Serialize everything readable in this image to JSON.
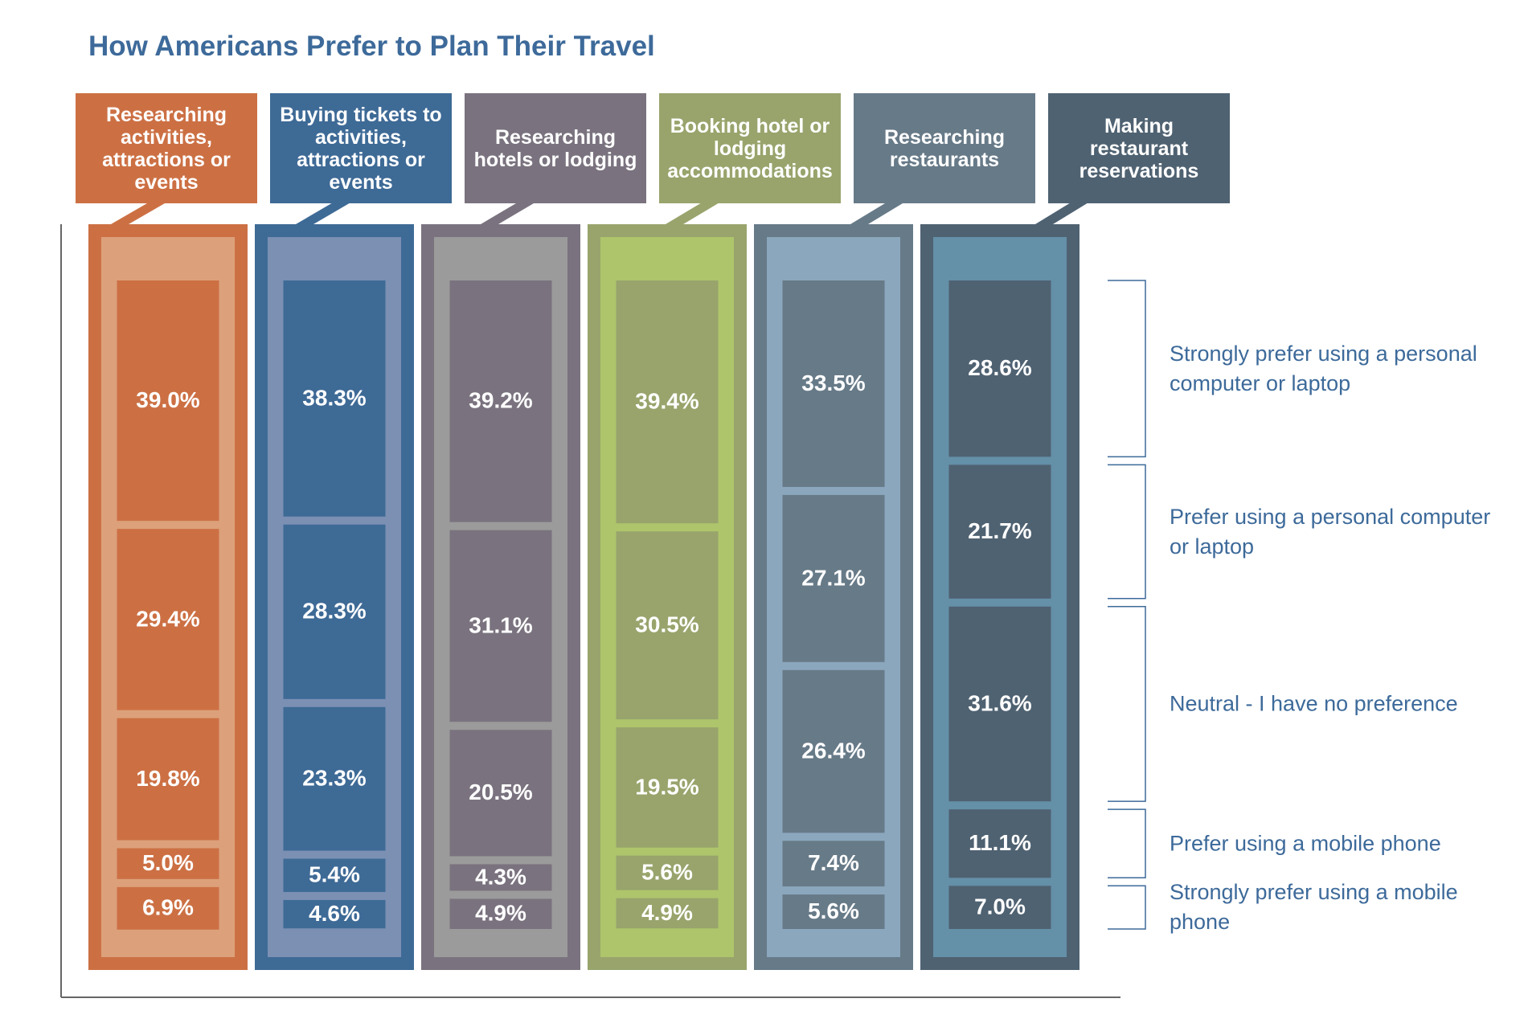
{
  "chart_data": {
    "type": "bar",
    "stacked": true,
    "title": "How Americans Prefer to Plan Their Travel",
    "categories": [
      "Researching activities, attractions or events",
      "Buying tickets to activities, attractions or events",
      "Researching hotels or lodging",
      "Booking hotel or lodging accommodations",
      "Researching restaurants",
      "Making restaurant reservations"
    ],
    "category_colors": [
      {
        "header": "#cc7044",
        "frame": "#cc7044",
        "inner": "#dca17b",
        "segment": "#cc7044"
      },
      {
        "header": "#3e6a96",
        "frame": "#3e6a96",
        "inner": "#7b90b3",
        "segment": "#3e6a96"
      },
      {
        "header": "#7a737f",
        "frame": "#7a737f",
        "inner": "#9b9b9b",
        "segment": "#7a737f"
      },
      {
        "header": "#98a46c",
        "frame": "#98a46c",
        "inner": "#aec56b",
        "segment": "#98a46c"
      },
      {
        "header": "#677a88",
        "frame": "#677a88",
        "inner": "#8ba7bd",
        "segment": "#677a88"
      },
      {
        "header": "#4f6272",
        "frame": "#4f6272",
        "inner": "#6490a8",
        "segment": "#4f6272"
      }
    ],
    "series": [
      {
        "name": "Strongly prefer using a personal computer or laptop",
        "values": [
          39.0,
          38.3,
          39.2,
          39.4,
          33.5,
          28.6
        ],
        "value_labels": [
          "39.0%",
          "38.3%",
          "39.2%",
          "39.4%",
          "33.5%",
          "28.6%"
        ]
      },
      {
        "name": "Prefer using a personal computer or laptop",
        "values": [
          29.4,
          28.3,
          31.1,
          30.5,
          27.1,
          21.7
        ],
        "value_labels": [
          "29.4%",
          "28.3%",
          "31.1%",
          "30.5%",
          "27.1%",
          "21.7%"
        ]
      },
      {
        "name": "Neutral - I have no preference",
        "values": [
          19.8,
          23.3,
          20.5,
          19.5,
          26.4,
          31.6
        ],
        "value_labels": [
          "19.8%",
          "23.3%",
          "20.5%",
          "19.5%",
          "26.4%",
          "31.6%"
        ]
      },
      {
        "name": "Prefer using a mobile phone",
        "values": [
          5.0,
          5.4,
          4.3,
          5.6,
          7.4,
          11.1
        ],
        "value_labels": [
          "5.0%",
          "5.4%",
          "4.3%",
          "5.6%",
          "7.4%",
          "11.1%"
        ]
      },
      {
        "name": "Strongly prefer using a mobile phone",
        "values": [
          6.9,
          4.6,
          4.9,
          4.9,
          5.6,
          7.0
        ],
        "value_labels": [
          "6.9%",
          "4.6%",
          "4.9%",
          "4.9%",
          "5.6%",
          "7.0%"
        ]
      }
    ]
  }
}
